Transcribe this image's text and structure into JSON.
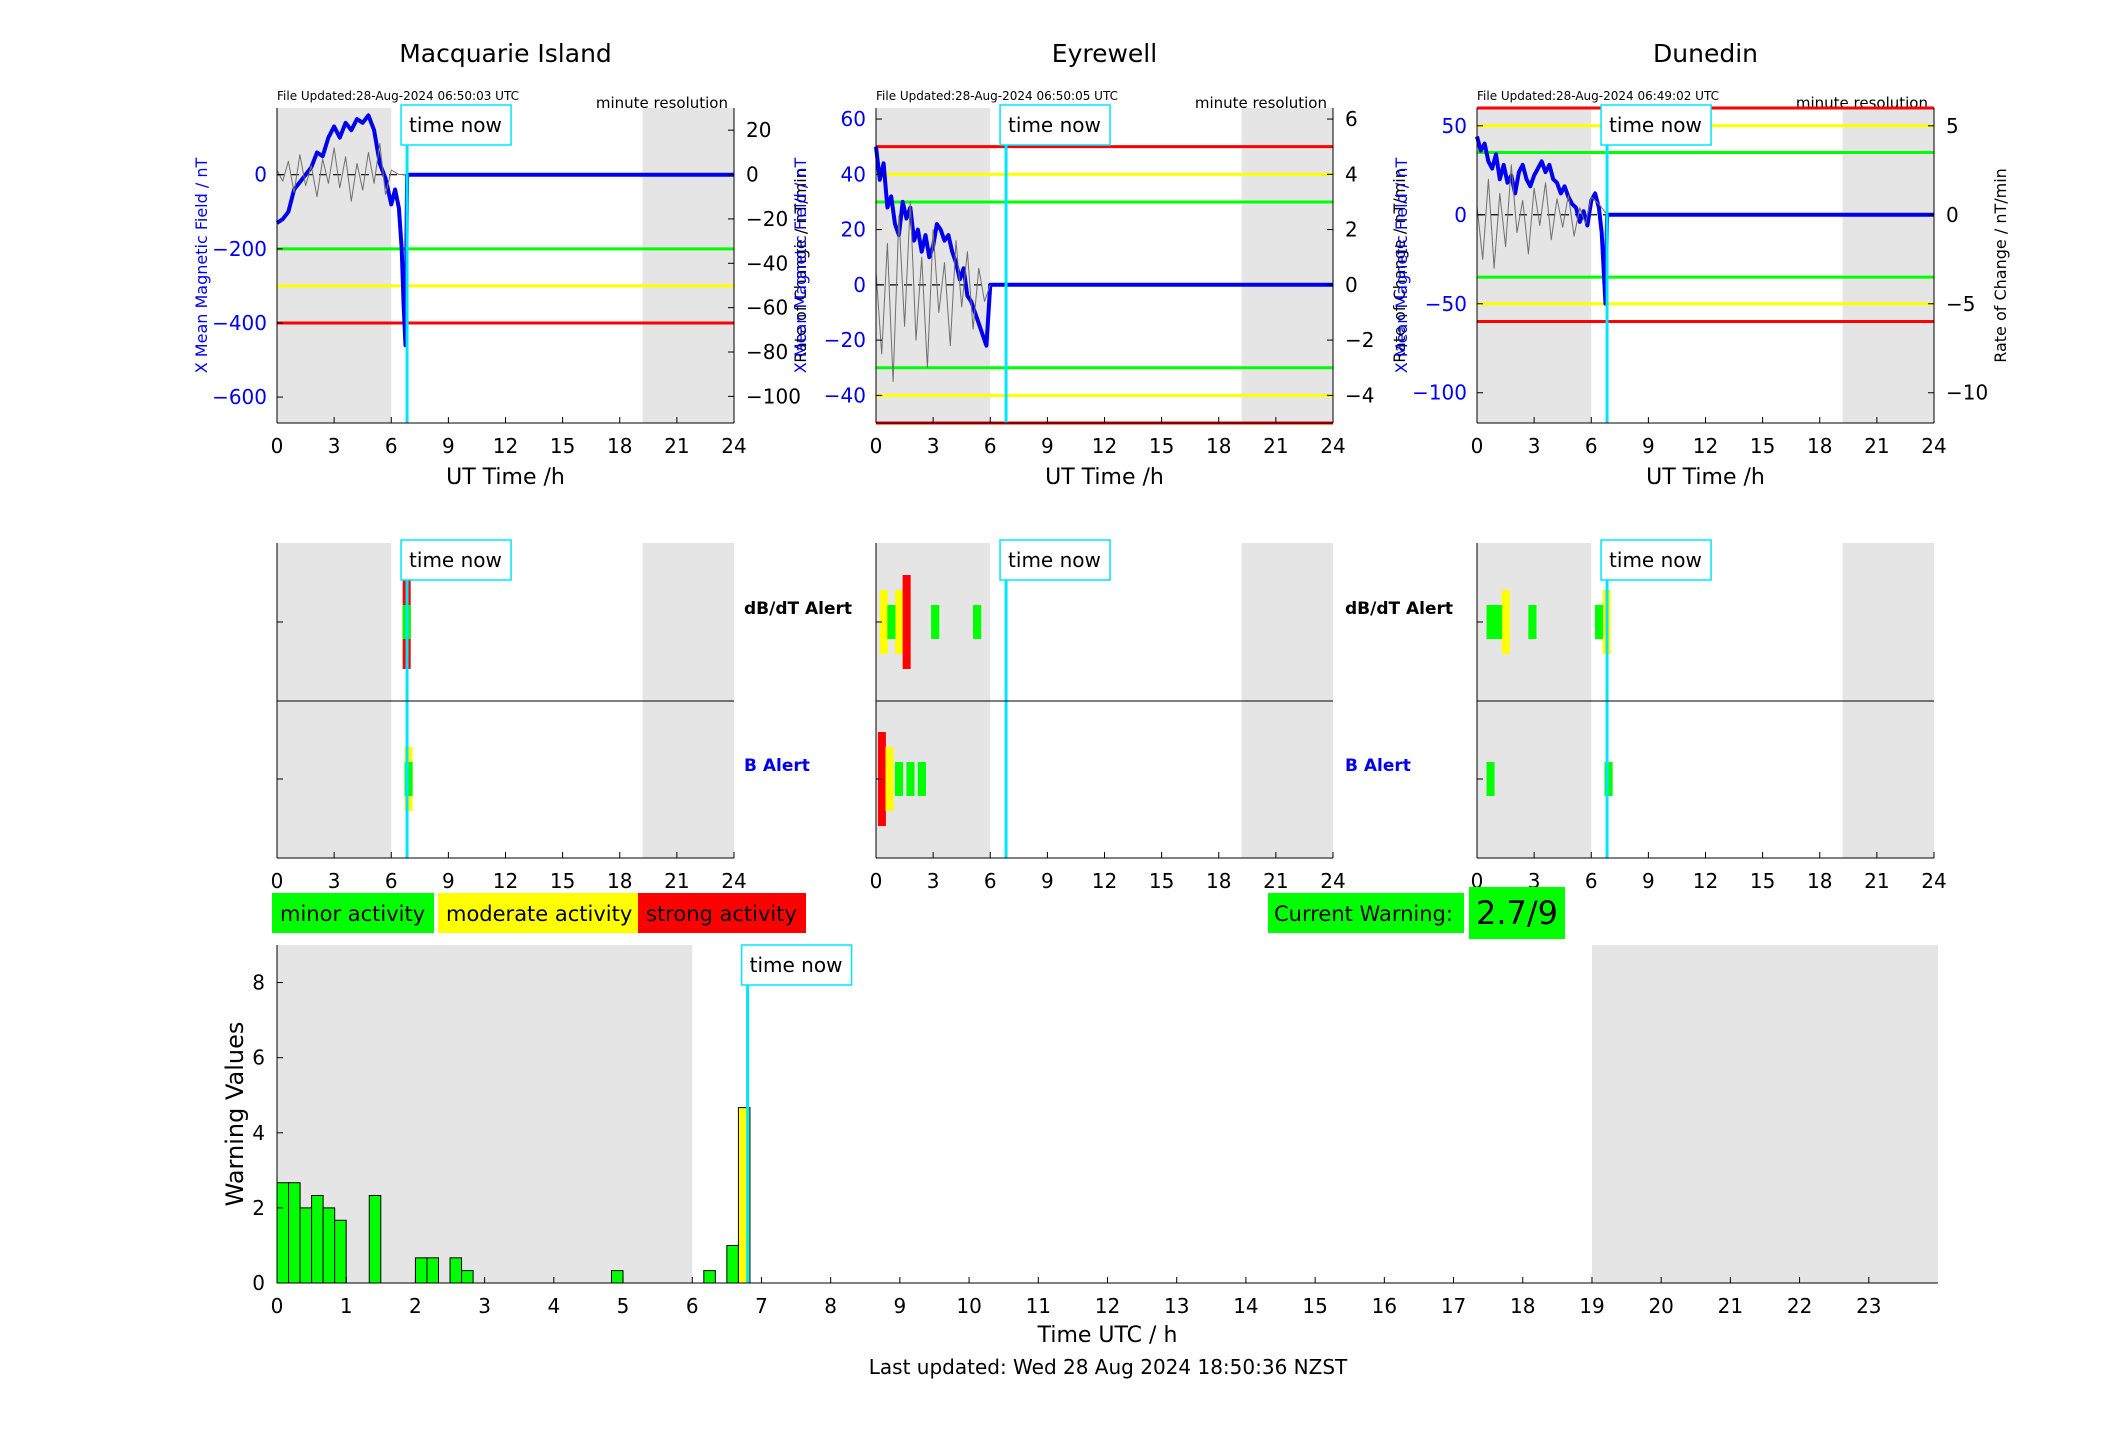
{
  "legend": {
    "minor": "minor activity",
    "moderate": "moderate activity",
    "strong": "strong activity",
    "minor_color": "#00ff00",
    "moderate_color": "#ffff00",
    "strong_color": "#ff0000"
  },
  "current_warning": {
    "label": "Current Warning:",
    "value": "2.7/9",
    "color": "#00ff00"
  },
  "footer": {
    "last_updated": "Last updated: Wed 28 Aug 2024 18:50:36 NZST"
  },
  "labels": {
    "time_now": "time now",
    "minute_resolution": "minute resolution",
    "ut_time": "UT Time /h",
    "left_axis": "X Mean Magnetic Field / nT",
    "right_axis": "Rate of Change / nT/min",
    "dbdt_alert": "dB/dT Alert",
    "b_alert": "B Alert",
    "time_utc": "Time UTC / h",
    "warning_values": "Warning Values"
  },
  "colors": {
    "field_line": "#0000ee",
    "rate_line": "#707070",
    "time_now_line": "#00e5ff",
    "shade": "#e5e5e5",
    "bar_green": "#00ff00",
    "bar_yellow": "#ffff00",
    "alert_red": "#ff0000",
    "alert_gray": "#808080"
  },
  "chart_data": [
    {
      "type": "line",
      "title": "Macquarie Island",
      "file_updated": "File Updated:28-Aug-2024 06:50:03 UTC",
      "xlabel": "UT Time /h",
      "ylabel_left": "X Mean Magnetic Field / nT",
      "ylabel_right": "Rate of Change / nT/min",
      "xlim": [
        0,
        24
      ],
      "x_ticks": [
        0,
        3,
        6,
        9,
        12,
        15,
        18,
        21,
        24
      ],
      "ylim_left": [
        -670,
        180
      ],
      "y_ticks_left": [
        -600,
        -400,
        -200,
        0
      ],
      "ylim_right": [
        -112,
        30
      ],
      "y_ticks_right": [
        -100,
        -80,
        -60,
        -40,
        -20,
        0,
        20
      ],
      "shaded_hours": [
        [
          0,
          6
        ],
        [
          19.2,
          24
        ]
      ],
      "time_now": 6.83,
      "thresholds": [
        {
          "level": "minor",
          "value": -200
        },
        {
          "level": "moderate",
          "value": -300
        },
        {
          "level": "strong",
          "value": -400
        }
      ],
      "series": [
        {
          "role": "field",
          "x": [
            0,
            0.3,
            0.6,
            0.9,
            1.2,
            1.5,
            1.8,
            2.1,
            2.4,
            2.7,
            3.0,
            3.3,
            3.6,
            3.9,
            4.2,
            4.5,
            4.8,
            5.1,
            5.4,
            5.7,
            6.0,
            6.2,
            6.4,
            6.55,
            6.65,
            6.75,
            6.83,
            7.0,
            24
          ],
          "y": [
            -130,
            -120,
            -100,
            -40,
            -20,
            0,
            20,
            60,
            50,
            100,
            130,
            100,
            140,
            120,
            150,
            140,
            160,
            120,
            30,
            -10,
            -80,
            -40,
            -90,
            -200,
            -350,
            -460,
            0,
            0,
            0
          ]
        },
        {
          "role": "rate",
          "x": [
            0,
            0.3,
            0.6,
            0.9,
            1.2,
            1.5,
            1.8,
            2.1,
            2.4,
            2.7,
            3.0,
            3.3,
            3.6,
            3.9,
            4.2,
            4.5,
            4.8,
            5.1,
            5.4,
            5.7,
            6.0,
            6.4,
            6.83
          ],
          "y": [
            2,
            -3,
            6,
            -8,
            9,
            -5,
            4,
            -10,
            7,
            -4,
            12,
            -6,
            8,
            -12,
            5,
            -7,
            10,
            -4,
            14,
            -9,
            2,
            0,
            0
          ]
        }
      ],
      "alerts": {
        "dbdt": [
          {
            "hour": 6.6,
            "level": "minor"
          },
          {
            "hour": 6.6,
            "level": "moderate"
          },
          {
            "hour": 6.6,
            "level": "strong"
          }
        ],
        "b": [
          {
            "hour": 6.7,
            "level": "minor"
          },
          {
            "hour": 6.7,
            "level": "moderate"
          }
        ]
      }
    },
    {
      "type": "line",
      "title": "Eyrewell",
      "file_updated": "File Updated:28-Aug-2024 06:50:05 UTC",
      "xlabel": "UT Time /h",
      "ylabel_left": "X Mean Magnetic Field / nT",
      "ylabel_right": "Rate of Change / nT/min",
      "xlim": [
        0,
        24
      ],
      "x_ticks": [
        0,
        3,
        6,
        9,
        12,
        15,
        18,
        21,
        24
      ],
      "ylim_left": [
        -50,
        64
      ],
      "y_ticks_left": [
        -40,
        -20,
        0,
        20,
        40,
        60
      ],
      "ylim_right": [
        -5,
        6.4
      ],
      "y_ticks_right": [
        -4,
        -2,
        0,
        2,
        4,
        6
      ],
      "shaded_hours": [
        [
          0,
          6
        ],
        [
          19.2,
          24
        ]
      ],
      "time_now": 6.83,
      "thresholds": [
        {
          "level": "minor",
          "value": 30
        },
        {
          "level": "moderate",
          "value": 40
        },
        {
          "level": "strong",
          "value": 50
        },
        {
          "level": "minor",
          "value": -30
        },
        {
          "level": "moderate",
          "value": -40
        },
        {
          "level": "strong",
          "value": -50
        }
      ],
      "series": [
        {
          "role": "field",
          "x": [
            0,
            0.2,
            0.4,
            0.6,
            0.8,
            1.0,
            1.2,
            1.4,
            1.6,
            1.8,
            2.0,
            2.2,
            2.4,
            2.6,
            2.8,
            3.0,
            3.2,
            3.4,
            3.6,
            3.8,
            4.0,
            4.2,
            4.4,
            4.6,
            4.8,
            5.0,
            5.2,
            5.4,
            5.6,
            5.8,
            6.0,
            24
          ],
          "y": [
            50,
            38,
            44,
            28,
            32,
            22,
            18,
            30,
            24,
            28,
            16,
            20,
            12,
            18,
            10,
            14,
            22,
            20,
            16,
            18,
            12,
            8,
            2,
            6,
            -4,
            -6,
            -10,
            -14,
            -18,
            -22,
            0,
            0
          ]
        },
        {
          "role": "rate",
          "x": [
            0,
            0.3,
            0.6,
            0.9,
            1.2,
            1.5,
            1.8,
            2.1,
            2.4,
            2.7,
            3.0,
            3.3,
            3.6,
            3.9,
            4.2,
            4.5,
            4.8,
            5.1,
            5.4,
            5.7,
            6.0
          ],
          "y": [
            0.5,
            -2.5,
            1.5,
            -3.5,
            2.5,
            -1.5,
            3.0,
            -2.0,
            1.0,
            -3.0,
            2.0,
            -1.0,
            0.8,
            -2.2,
            1.6,
            -0.8,
            1.2,
            -1.6,
            0.6,
            -0.6,
            0
          ]
        }
      ],
      "alerts": {
        "dbdt": [
          {
            "hour": 0.2,
            "level": "moderate"
          },
          {
            "hour": 0.6,
            "level": "minor"
          },
          {
            "hour": 1.0,
            "level": "moderate"
          },
          {
            "hour": 1.4,
            "level": "strong"
          },
          {
            "hour": 2.9,
            "level": "minor"
          },
          {
            "hour": 5.1,
            "level": "minor"
          }
        ],
        "b": [
          {
            "hour": 0.1,
            "level": "strong"
          },
          {
            "hour": 0.5,
            "level": "moderate"
          },
          {
            "hour": 1.0,
            "level": "minor"
          },
          {
            "hour": 1.6,
            "level": "minor"
          },
          {
            "hour": 2.2,
            "level": "minor"
          }
        ]
      }
    },
    {
      "type": "line",
      "title": "Dunedin",
      "file_updated": "File Updated:28-Aug-2024 06:49:02 UTC",
      "xlabel": "UT Time /h",
      "ylabel_left": "X Mean Magnetic Field / nT",
      "ylabel_right": "Rate of Change / nT/min",
      "xlim": [
        0,
        24
      ],
      "x_ticks": [
        0,
        3,
        6,
        9,
        12,
        15,
        18,
        21,
        24
      ],
      "ylim_left": [
        -117,
        60
      ],
      "y_ticks_left": [
        -100,
        -50,
        0,
        50
      ],
      "ylim_right": [
        -11.7,
        6
      ],
      "y_ticks_right": [
        -10,
        -5,
        0,
        5
      ],
      "shaded_hours": [
        [
          0,
          6
        ],
        [
          19.2,
          24
        ]
      ],
      "time_now": 6.83,
      "thresholds": [
        {
          "level": "minor",
          "value": 35
        },
        {
          "level": "moderate",
          "value": 50
        },
        {
          "level": "strong",
          "value": 60
        },
        {
          "level": "minor",
          "value": -35
        },
        {
          "level": "moderate",
          "value": -50
        },
        {
          "level": "strong",
          "value": -60
        }
      ],
      "series": [
        {
          "role": "field",
          "x": [
            0,
            0.2,
            0.4,
            0.6,
            0.8,
            1.0,
            1.2,
            1.4,
            1.6,
            1.8,
            2.0,
            2.2,
            2.4,
            2.6,
            2.8,
            3.0,
            3.2,
            3.4,
            3.6,
            3.8,
            4.0,
            4.2,
            4.4,
            4.6,
            4.8,
            5.0,
            5.2,
            5.4,
            5.6,
            5.8,
            6.0,
            6.2,
            6.4,
            6.55,
            6.65,
            6.75,
            6.83,
            24
          ],
          "y": [
            44,
            36,
            40,
            30,
            26,
            34,
            20,
            28,
            18,
            22,
            12,
            24,
            28,
            20,
            16,
            22,
            26,
            30,
            24,
            28,
            20,
            18,
            12,
            16,
            10,
            6,
            4,
            -4,
            2,
            -6,
            8,
            12,
            4,
            -10,
            -30,
            -50,
            0,
            0
          ]
        },
        {
          "role": "rate",
          "x": [
            0,
            0.3,
            0.6,
            0.9,
            1.2,
            1.5,
            1.8,
            2.1,
            2.4,
            2.7,
            3.0,
            3.3,
            3.6,
            3.9,
            4.2,
            4.5,
            4.8,
            5.1,
            5.4,
            5.7,
            6.0,
            6.4,
            6.83
          ],
          "y": [
            0.5,
            -2.5,
            2.0,
            -3.0,
            1.2,
            -1.8,
            2.8,
            -1.0,
            0.8,
            -2.2,
            1.5,
            -0.6,
            1.8,
            -1.4,
            0.9,
            -0.7,
            1.1,
            -1.2,
            0.4,
            -0.5,
            1.0,
            0.6,
            0
          ]
        }
      ],
      "alerts": {
        "dbdt": [
          {
            "hour": 0.5,
            "level": "minor"
          },
          {
            "hour": 0.9,
            "level": "minor"
          },
          {
            "hour": 1.3,
            "level": "moderate"
          },
          {
            "hour": 2.7,
            "level": "minor"
          },
          {
            "hour": 6.2,
            "level": "minor"
          },
          {
            "hour": 6.6,
            "level": "moderate"
          }
        ],
        "b": [
          {
            "hour": 0.5,
            "level": "minor"
          },
          {
            "hour": 6.7,
            "level": "minor"
          }
        ]
      }
    },
    {
      "type": "bar",
      "xlabel": "Time UTC / h",
      "ylabel": "Warning Values",
      "xlim": [
        0,
        24
      ],
      "x_ticks": [
        0,
        1,
        2,
        3,
        4,
        5,
        6,
        7,
        8,
        9,
        10,
        11,
        12,
        13,
        14,
        15,
        16,
        17,
        18,
        19,
        20,
        21,
        22,
        23
      ],
      "ylim": [
        0,
        9
      ],
      "y_ticks": [
        0,
        2,
        4,
        6,
        8
      ],
      "shaded_hours": [
        [
          0,
          6
        ],
        [
          19,
          24
        ]
      ],
      "time_now": 6.8,
      "bars": [
        {
          "x": 0.0,
          "value": 2.67,
          "level": "minor"
        },
        {
          "x": 0.167,
          "value": 2.67,
          "level": "minor"
        },
        {
          "x": 0.333,
          "value": 2.0,
          "level": "minor"
        },
        {
          "x": 0.5,
          "value": 2.33,
          "level": "minor"
        },
        {
          "x": 0.667,
          "value": 2.0,
          "level": "minor"
        },
        {
          "x": 0.833,
          "value": 1.67,
          "level": "minor"
        },
        {
          "x": 1.333,
          "value": 2.33,
          "level": "minor"
        },
        {
          "x": 2.0,
          "value": 0.67,
          "level": "minor"
        },
        {
          "x": 2.167,
          "value": 0.67,
          "level": "minor"
        },
        {
          "x": 2.5,
          "value": 0.67,
          "level": "minor"
        },
        {
          "x": 2.667,
          "value": 0.33,
          "level": "minor"
        },
        {
          "x": 4.833,
          "value": 0.33,
          "level": "minor"
        },
        {
          "x": 6.167,
          "value": 0.33,
          "level": "minor"
        },
        {
          "x": 6.5,
          "value": 1.0,
          "level": "minor"
        },
        {
          "x": 6.667,
          "value": 4.67,
          "level": "moderate"
        }
      ]
    }
  ]
}
